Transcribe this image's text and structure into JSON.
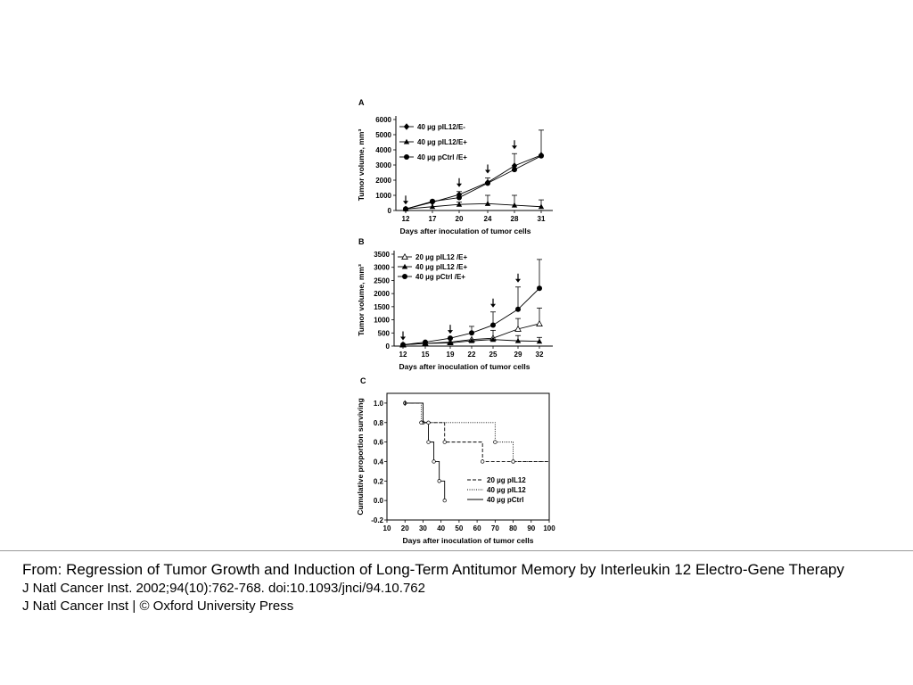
{
  "chart_data": [
    {
      "panel": "A",
      "type": "line",
      "title": "",
      "xlabel": "Days after inoculation of tumor cells",
      "ylabel": "Tumor volume, mm³",
      "x_ticks": [
        12,
        17,
        20,
        24,
        28,
        31
      ],
      "y_ticks": [
        0,
        1000,
        2000,
        3000,
        4000,
        5000,
        6000
      ],
      "ylim": [
        0,
        6000
      ],
      "legend_position": "top-left",
      "treatment_days": [
        12,
        20,
        24,
        28
      ],
      "series": [
        {
          "name": "40 µg pIL12/E-",
          "marker": "diamond",
          "x": [
            12,
            17,
            20,
            24,
            28,
            31
          ],
          "y": [
            100,
            550,
            1050,
            1850,
            2950,
            3650
          ],
          "err": [
            0,
            100,
            200,
            300,
            800,
            1650
          ]
        },
        {
          "name": "40 µg pIL12/E+",
          "marker": "triangle",
          "x": [
            12,
            17,
            20,
            24,
            28,
            31
          ],
          "y": [
            100,
            250,
            400,
            450,
            350,
            250
          ],
          "err": [
            0,
            0,
            150,
            550,
            650,
            450
          ]
        },
        {
          "name": "40 µg pCtrl /E+",
          "marker": "circle",
          "x": [
            12,
            17,
            20,
            24,
            28,
            31
          ],
          "y": [
            100,
            600,
            850,
            1800,
            2700,
            3600
          ],
          "err": [
            0,
            0,
            0,
            0,
            0,
            0
          ]
        }
      ]
    },
    {
      "panel": "B",
      "type": "line",
      "title": "",
      "xlabel": "Days after inoculation of tumor cells",
      "ylabel": "Tumor volume, mm³",
      "x_ticks": [
        12,
        15,
        19,
        22,
        25,
        29,
        32
      ],
      "y_ticks": [
        0,
        500,
        1000,
        1500,
        2000,
        2500,
        3000,
        3500
      ],
      "ylim": [
        0,
        3500
      ],
      "legend_position": "top-left",
      "treatment_days": [
        12,
        19,
        25,
        29
      ],
      "series": [
        {
          "name": "20 µg pIL12 /E+",
          "marker": "open-triangle",
          "x": [
            12,
            15,
            19,
            22,
            25,
            29,
            32
          ],
          "y": [
            50,
            100,
            150,
            250,
            300,
            650,
            850
          ],
          "err": [
            0,
            0,
            0,
            0,
            300,
            400,
            600
          ]
        },
        {
          "name": "40 µg pIL12 /E+",
          "marker": "triangle",
          "x": [
            12,
            15,
            19,
            22,
            25,
            29,
            32
          ],
          "y": [
            50,
            100,
            120,
            200,
            250,
            200,
            180
          ],
          "err": [
            0,
            0,
            0,
            0,
            0,
            200,
            150
          ]
        },
        {
          "name": "40 µg  pCtrl /E+",
          "marker": "circle",
          "x": [
            12,
            15,
            19,
            22,
            25,
            29,
            32
          ],
          "y": [
            50,
            150,
            300,
            500,
            800,
            1400,
            2200
          ],
          "err": [
            0,
            0,
            0,
            250,
            500,
            850,
            1100
          ]
        }
      ]
    },
    {
      "panel": "C",
      "type": "line",
      "title": "",
      "xlabel": "Days after inoculation of tumor cells",
      "ylabel": "Cumulative proportion surviving",
      "x_ticks": [
        10,
        20,
        30,
        40,
        50,
        60,
        70,
        80,
        90,
        100
      ],
      "y_ticks": [
        -0.2,
        0.0,
        0.2,
        0.4,
        0.6,
        0.8,
        1.0
      ],
      "xlim": [
        10,
        100
      ],
      "ylim": [
        -0.2,
        1.1
      ],
      "legend_position": "bottom-right",
      "series": [
        {
          "name": "20 µg pIL12",
          "style": "dashed",
          "steps": [
            [
              20,
              1.0
            ],
            [
              30,
              0.8
            ],
            [
              42,
              0.6
            ],
            [
              63,
              0.4
            ],
            [
              100,
              0.4
            ]
          ],
          "marks": [
            [
              20,
              1.0
            ],
            [
              30,
              0.8
            ],
            [
              42,
              0.6
            ],
            [
              63,
              0.4
            ],
            [
              80,
              0.4
            ]
          ]
        },
        {
          "name": "40 µg pIL12",
          "style": "dotted",
          "steps": [
            [
              20,
              1.0
            ],
            [
              29,
              0.8
            ],
            [
              70,
              0.6
            ],
            [
              80,
              0.4
            ],
            [
              100,
              0.4
            ]
          ],
          "marks": [
            [
              29,
              0.8
            ],
            [
              70,
              0.6
            ],
            [
              80,
              0.4
            ]
          ]
        },
        {
          "name": "40 µg pCtrl",
          "style": "solid",
          "steps": [
            [
              20,
              1.0
            ],
            [
              30,
              0.8
            ],
            [
              33,
              0.6
            ],
            [
              36,
              0.4
            ],
            [
              39,
              0.2
            ],
            [
              42,
              0.0
            ]
          ],
          "marks": [
            [
              33,
              0.8
            ],
            [
              33,
              0.6
            ],
            [
              36,
              0.4
            ],
            [
              39,
              0.2
            ],
            [
              42,
              0.0
            ]
          ]
        }
      ]
    }
  ],
  "caption": {
    "from": "From: Regression of Tumor Growth and Induction of Long-Term Antitumor Memory by Interleukin 12 Electro-Gene Therapy",
    "citation": "J Natl Cancer Inst. 2002;94(10):762-768. doi:10.1093/jnci/94.10.762",
    "publisher": "J Natl Cancer Inst | © Oxford University Press"
  }
}
